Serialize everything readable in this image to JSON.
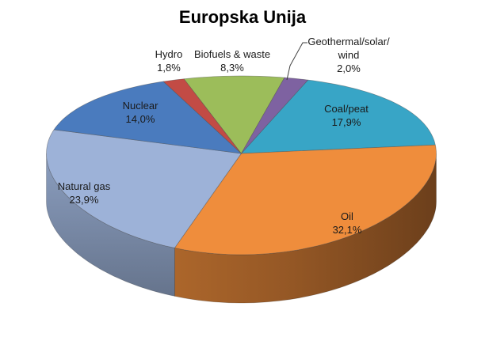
{
  "page": {
    "background": "#ffffff"
  },
  "chart_data": {
    "type": "pie",
    "style": "3d",
    "title": "Europska Unija",
    "unit": "%",
    "total": 100.0,
    "direction": "clockwise",
    "start_angle_deg": 20,
    "decimal_separator": ",",
    "legend": "none",
    "labels_show": "category_and_percent",
    "slices": [
      {
        "label": "Coal/peat",
        "value": 17.9,
        "display": "17,9%",
        "color": "#38A5C6"
      },
      {
        "label": "Oil",
        "value": 32.1,
        "display": "32,1%",
        "color": "#EF8D3C"
      },
      {
        "label": "Natural gas",
        "value": 23.9,
        "display": "23,9%",
        "color": "#9DB2D8"
      },
      {
        "label": "Nuclear",
        "value": 14.0,
        "display": "14,0%",
        "color": "#4A7BBE"
      },
      {
        "label": "Hydro",
        "value": 1.8,
        "display": "1,8%",
        "color": "#C24B45"
      },
      {
        "label": "Biofuels & waste",
        "value": 8.3,
        "display": "8,3%",
        "color": "#9CBD5A"
      },
      {
        "label": "Geothermal/solar/wind",
        "value": 2.0,
        "display": "2,0%",
        "color": "#7E62A1",
        "label_lines": [
          "Geothermal/solar/",
          "wind"
        ],
        "leader_line": true
      }
    ]
  }
}
